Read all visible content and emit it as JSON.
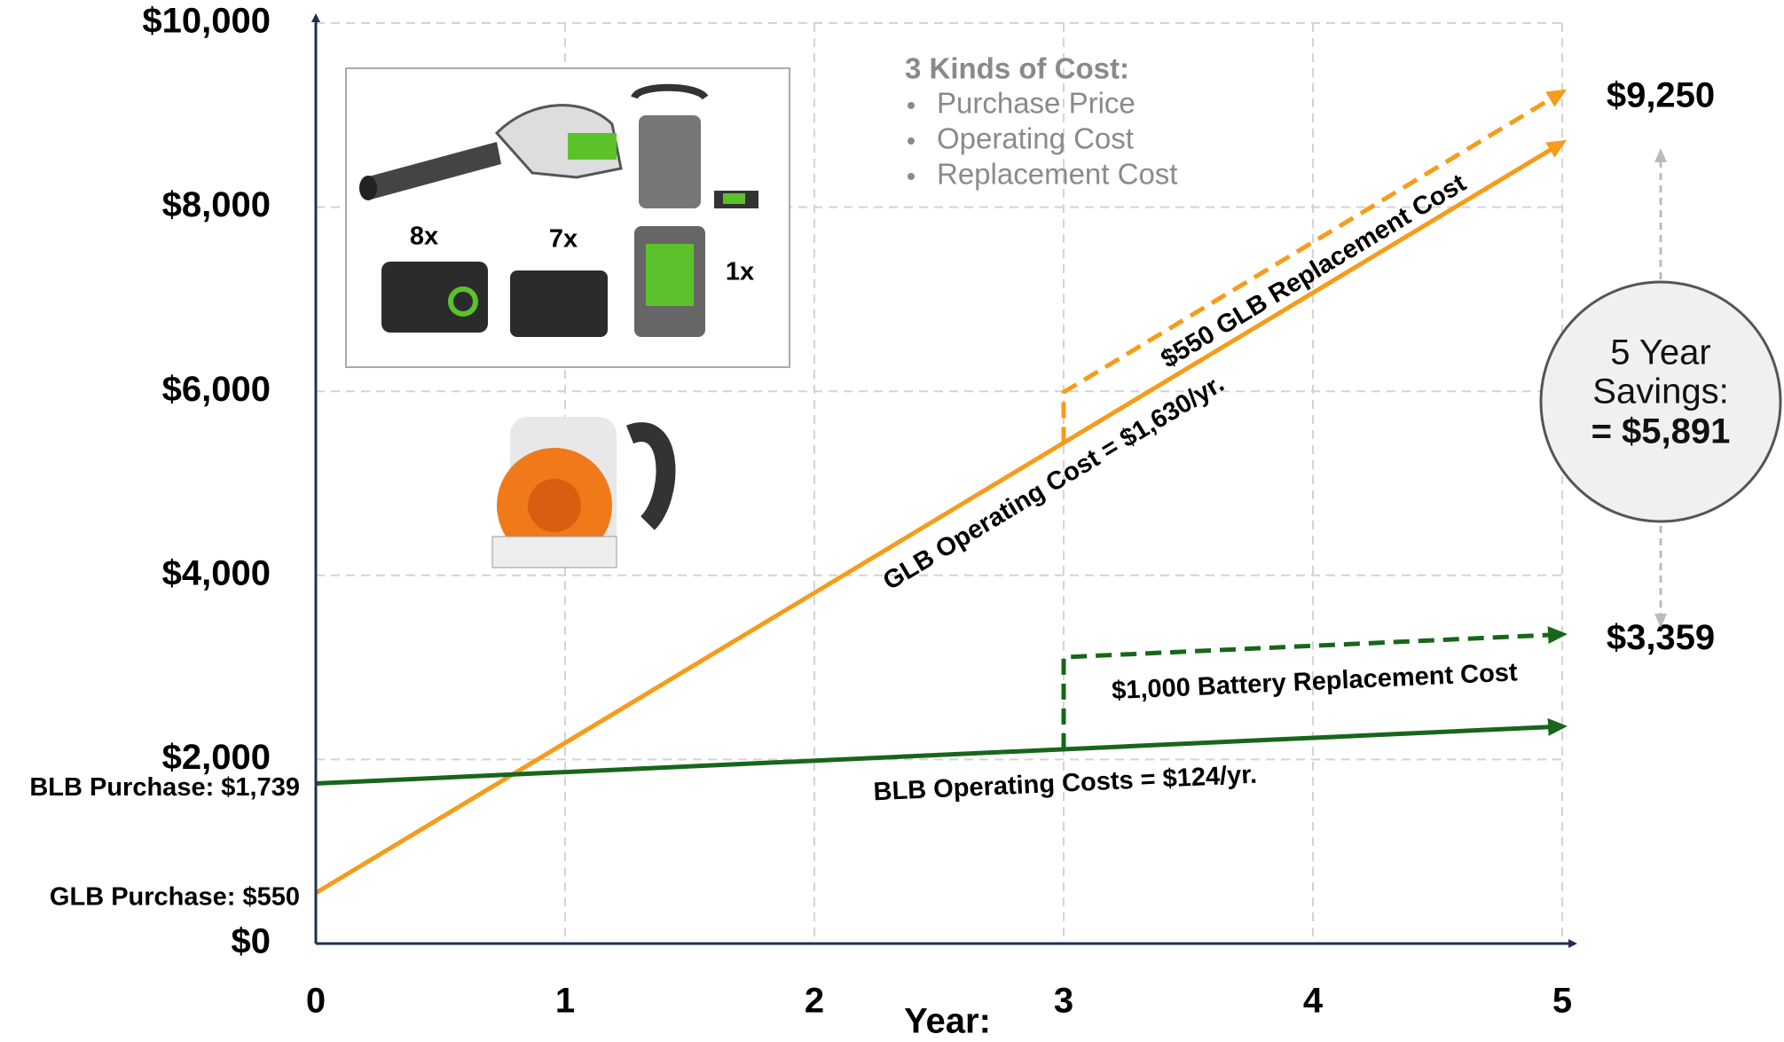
{
  "chart_data": {
    "type": "line",
    "xlim": [
      0,
      5
    ],
    "ylim": [
      0,
      10000
    ],
    "xticks": [
      0,
      1,
      2,
      3,
      4,
      5
    ],
    "yticks": [
      {
        "value": 0,
        "label": "$0"
      },
      {
        "value": 2000,
        "label": "$2,000"
      },
      {
        "value": 4000,
        "label": "$4,000"
      },
      {
        "value": 6000,
        "label": "$6,000"
      },
      {
        "value": 8000,
        "label": "$8,000"
      },
      {
        "value": 10000,
        "label": "$10,000"
      }
    ],
    "x_label": "Year:",
    "grid": true,
    "series": [
      {
        "name": "GLB Operating Cost = $1,630/yr.",
        "color": "#f59c1a",
        "dashed": false,
        "x": [
          0,
          5
        ],
        "values": [
          550,
          8700
        ],
        "start_label": "GLB Purchase: $550"
      },
      {
        "name": "$550 GLB Replacement Cost",
        "color": "#f59c1a",
        "dashed": true,
        "x": [
          3,
          3,
          5
        ],
        "values": [
          5440,
          5990,
          9250
        ],
        "end_label": "$9,250"
      },
      {
        "name": "BLB Operating Costs = $124/yr.",
        "color": "#17661a",
        "dashed": false,
        "x": [
          0,
          5
        ],
        "values": [
          1739,
          2359
        ],
        "start_label": "BLB Purchase: $1,739"
      },
      {
        "name": "$1,000 Battery Replacement Cost",
        "color": "#17661a",
        "dashed": true,
        "x": [
          3,
          3,
          5
        ],
        "values": [
          2111,
          3111,
          3359
        ],
        "end_label": "$3,359"
      }
    ],
    "savings": {
      "lines": [
        "5 Year",
        "Savings:",
        "= $5,891"
      ]
    },
    "cost_note": {
      "title": "3 Kinds of Cost:",
      "items": [
        "Purchase Price",
        "Operating Cost",
        "Replacement Cost"
      ]
    }
  },
  "product_images": {
    "counts": [
      "8x",
      "7x",
      "1x"
    ]
  }
}
